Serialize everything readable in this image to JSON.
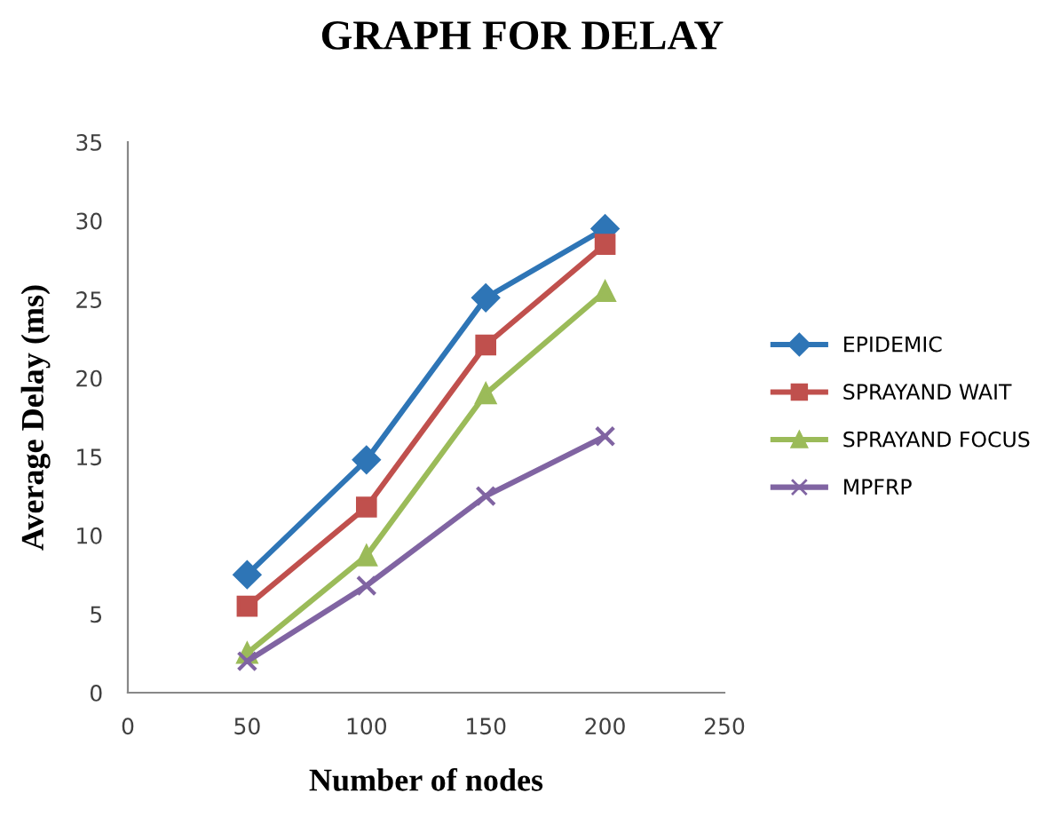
{
  "chart_data": {
    "type": "line",
    "title": "GRAPH FOR DELAY",
    "xlabel": "Number of nodes",
    "ylabel": "Average Delay (ms)",
    "x": [
      50,
      100,
      150,
      200
    ],
    "series": [
      {
        "name": "EPIDEMIC",
        "color": "#2e75b6",
        "marker": "diamond",
        "values": [
          7.5,
          14.8,
          25.1,
          29.5
        ]
      },
      {
        "name": "SPRAYAND WAIT",
        "color": "#c0504d",
        "marker": "square",
        "values": [
          5.5,
          11.8,
          22.1,
          28.5
        ]
      },
      {
        "name": "SPRAYAND FOCUS",
        "color": "#9bbb59",
        "marker": "triangle",
        "values": [
          2.5,
          8.7,
          19.0,
          25.5
        ]
      },
      {
        "name": "MPFRP",
        "color": "#8064a2",
        "marker": "cross",
        "values": [
          2,
          6.8,
          12.5,
          16.3
        ]
      }
    ],
    "xlim": [
      0,
      250
    ],
    "xticks": [
      0,
      50,
      100,
      150,
      200,
      250
    ],
    "ylim": [
      0,
      35
    ],
    "yticks": [
      0,
      5,
      10,
      15,
      20,
      25,
      30,
      35
    ],
    "grid": false,
    "legend": "right",
    "line_style": "solid"
  }
}
